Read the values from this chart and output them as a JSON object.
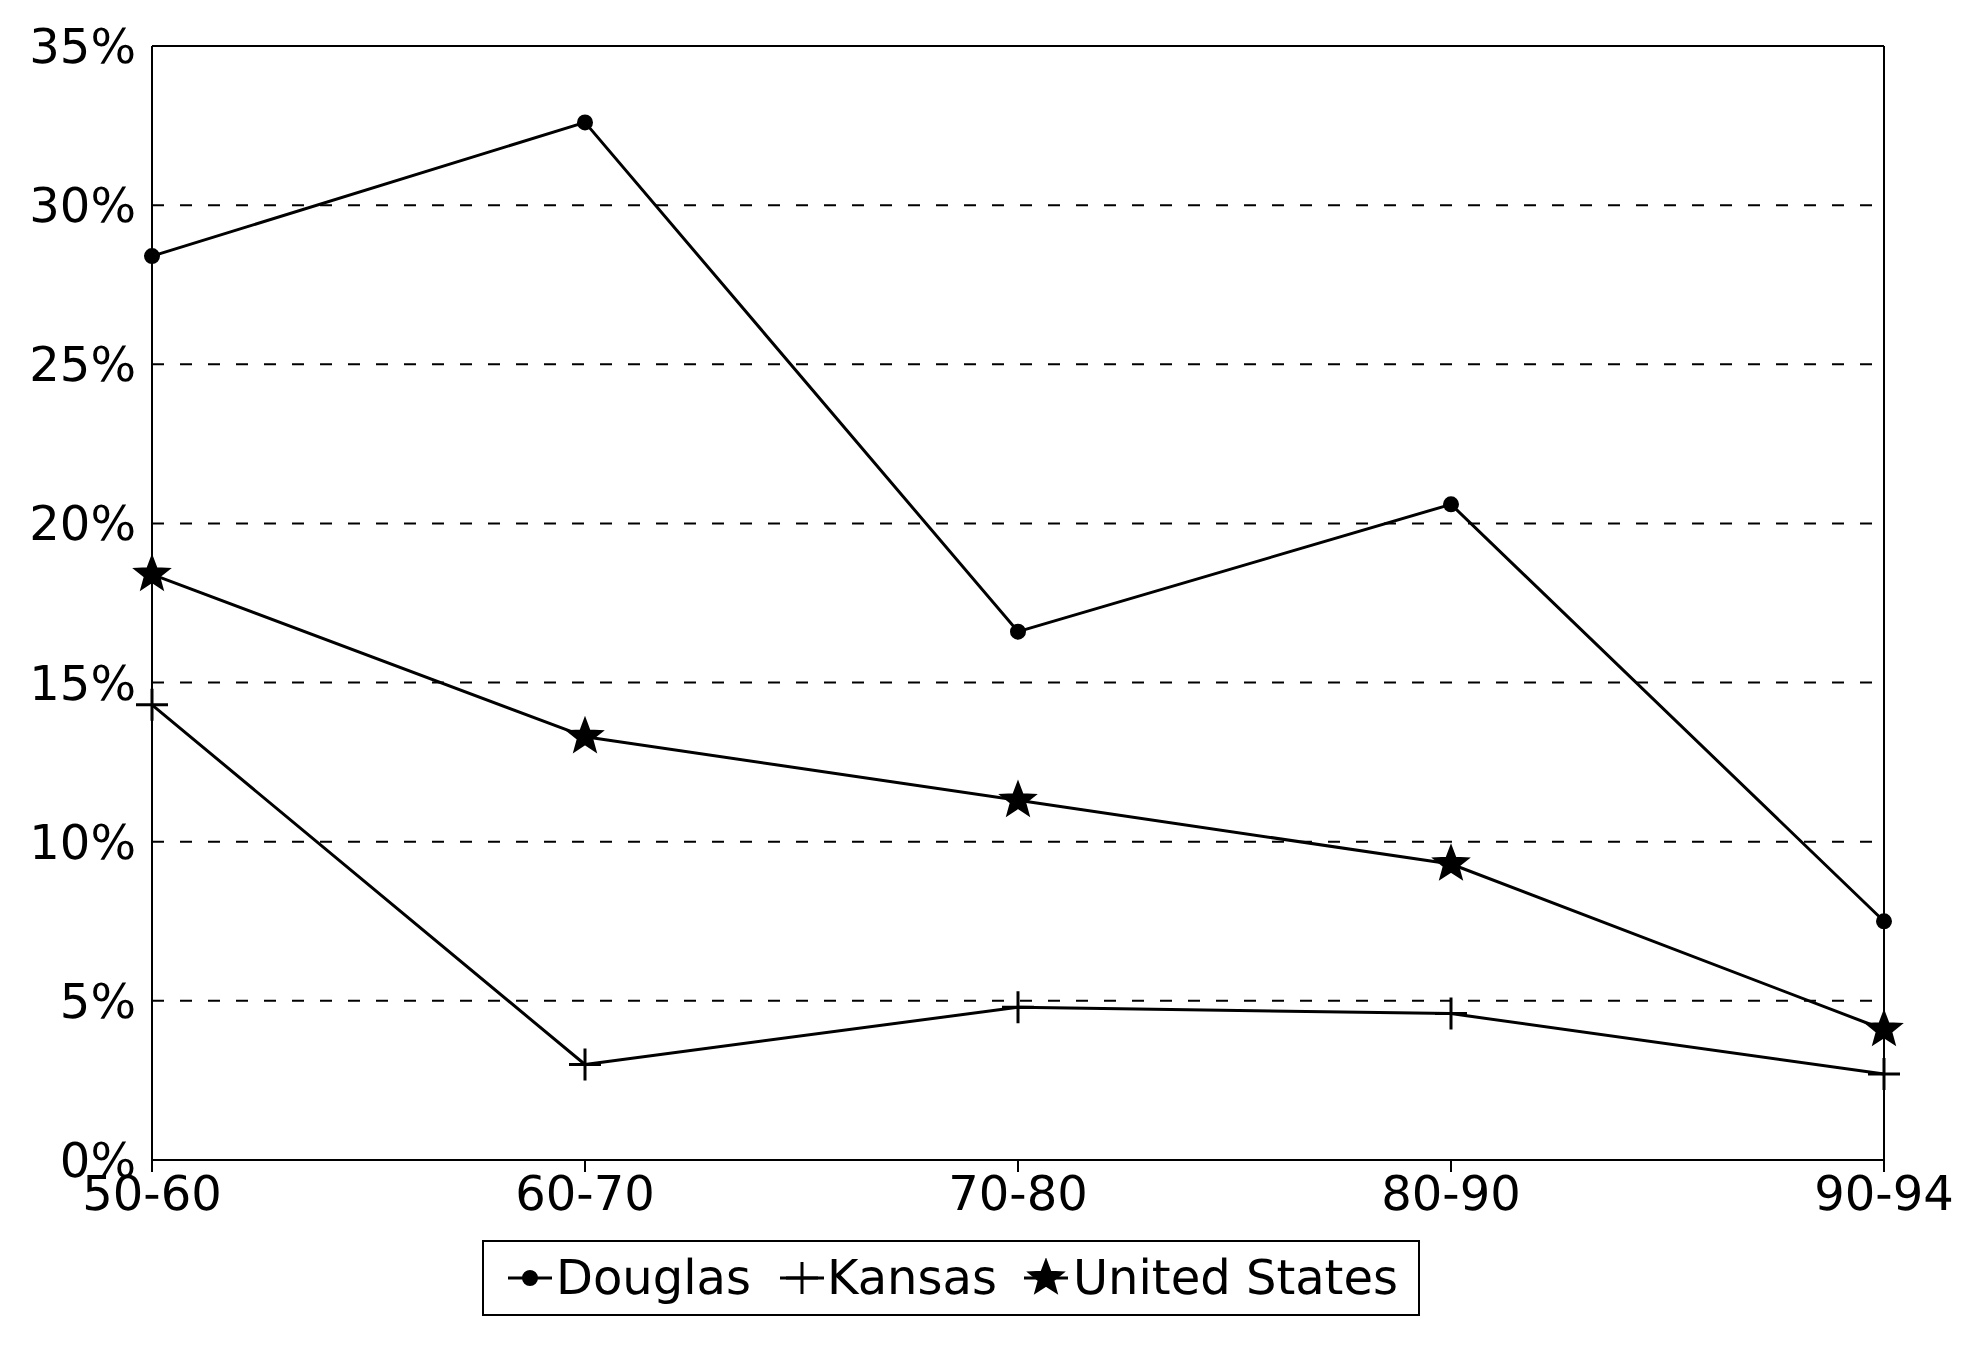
{
  "chart_data": {
    "type": "line",
    "categories": [
      "50-60",
      "60-70",
      "70-80",
      "80-90",
      "90-94"
    ],
    "series": [
      {
        "name": "Douglas",
        "color": "#000000",
        "marker": "circle",
        "values": [
          28.4,
          32.6,
          16.6,
          20.6,
          7.5
        ]
      },
      {
        "name": "Kansas",
        "color": "#000000",
        "marker": "cross",
        "values": [
          14.3,
          3.0,
          4.8,
          4.6,
          2.7
        ]
      },
      {
        "name": "United States",
        "color": "#000000",
        "marker": "star",
        "values": [
          18.4,
          13.3,
          11.3,
          9.3,
          4.1
        ]
      }
    ],
    "ylim": [
      0,
      35
    ],
    "yticks": [
      {
        "value": 0,
        "label": "0%"
      },
      {
        "value": 5,
        "label": "5%"
      },
      {
        "value": 10,
        "label": "10%"
      },
      {
        "value": 15,
        "label": "15%"
      },
      {
        "value": 20,
        "label": "20%"
      },
      {
        "value": 25,
        "label": "25%"
      },
      {
        "value": 30,
        "label": "30%"
      },
      {
        "value": 35,
        "label": "35%"
      }
    ],
    "grid": "y",
    "legend": "bottom",
    "line_style": "solid"
  }
}
